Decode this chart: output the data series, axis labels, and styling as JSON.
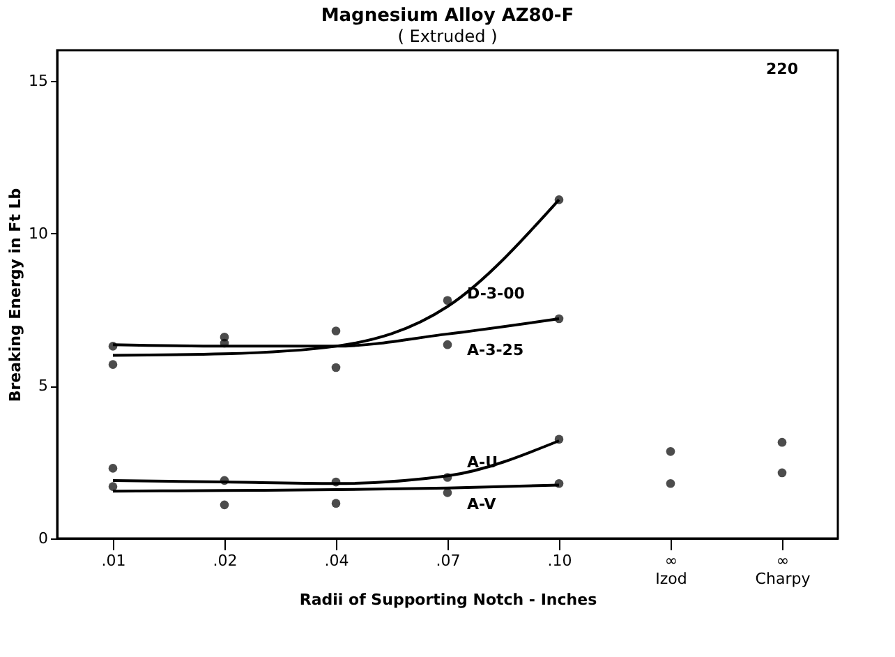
{
  "chart_data": {
    "type": "scatter",
    "title": "Magnesium Alloy AZ80-F",
    "subtitle": "( Extruded )",
    "xlabel": "Radii of Supporting Notch - Inches",
    "ylabel": "Breaking Energy in Ft Lb",
    "categories": [
      ".01",
      ".02",
      ".04",
      ".07",
      ".10",
      "∞ Izod",
      "∞ Charpy"
    ],
    "series": [
      {
        "color": "#000000",
        "marker": "circle",
        "values": [
          5.7,
          6.6,
          5.6,
          7.8,
          11.1,
          null,
          null
        ]
      },
      {
        "color": "#000000",
        "marker": "circle",
        "values": [
          6.3,
          6.4,
          6.8,
          6.35,
          7.2,
          null,
          null
        ]
      },
      {
        "color": "#000000",
        "marker": "circle",
        "values": [
          2.3,
          1.9,
          1.85,
          2.0,
          3.25,
          2.85,
          3.15
        ]
      },
      {
        "color": "#000000",
        "marker": "circle",
        "values": [
          1.7,
          1.1,
          1.15,
          1.5,
          1.8,
          1.8,
          2.15
        ]
      },
      {
        "type": "line",
        "name": "D-3-00",
        "color": "#000000",
        "values": [
          6.0,
          6.05,
          6.3,
          7.6,
          11.1,
          null,
          null
        ]
      },
      {
        "type": "line",
        "name": "A-3-25",
        "color": "#000000",
        "values": [
          6.35,
          6.3,
          6.3,
          6.7,
          7.2,
          null,
          null
        ]
      },
      {
        "type": "line",
        "name": "A-U",
        "color": "#000000",
        "values": [
          1.9,
          1.85,
          1.8,
          2.05,
          3.2,
          null,
          null
        ]
      },
      {
        "type": "line",
        "name": "A-V",
        "color": "#000000",
        "values": [
          1.55,
          1.57,
          1.6,
          1.65,
          1.75,
          null,
          null
        ]
      }
    ],
    "annotations": [
      "220"
    ],
    "ylim": [
      0,
      16
    ],
    "yticks": [
      0,
      5,
      10,
      15
    ],
    "grid": false
  }
}
